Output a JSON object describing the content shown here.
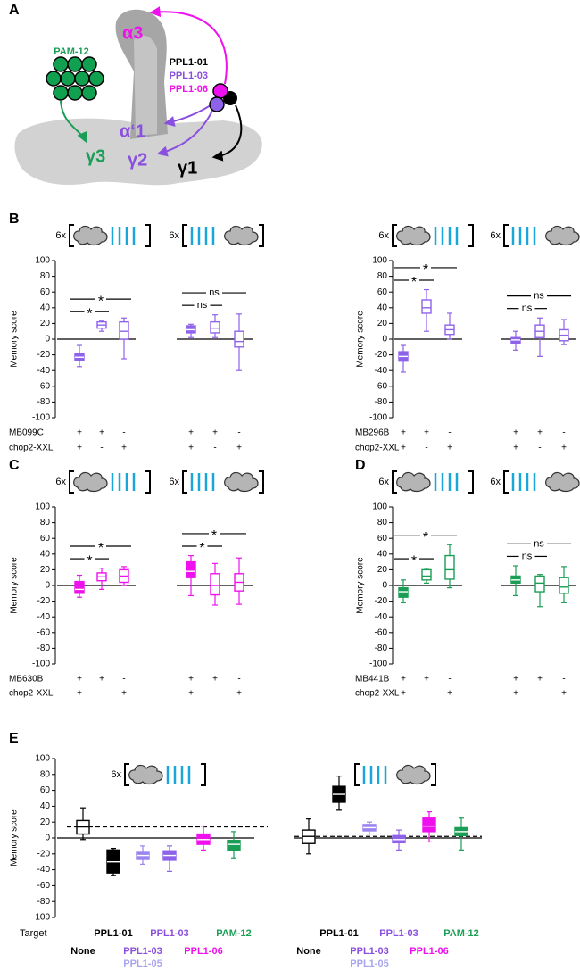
{
  "diagram": {
    "panel": "A",
    "labels": {
      "alpha3": "α3",
      "pam12": "PAM-12",
      "gamma3": "γ3",
      "alpha1": "α‘1",
      "gamma2": "γ2",
      "gamma1": "γ1",
      "ppl101": "PPL1-01",
      "ppl103": "PPL1-03",
      "ppl106": "PPL1-06"
    }
  },
  "chart_data": [
    {
      "type": "box",
      "panel": "B",
      "y_label": "Memory score",
      "ylim": [
        -100,
        100
      ],
      "yticks": [
        -100,
        -80,
        -60,
        -40,
        -20,
        0,
        20,
        40,
        60,
        80,
        100
      ],
      "color": "#8f62ea",
      "row_labels": [
        "MB099C",
        "chop2-XXL"
      ],
      "groups": [
        {
          "prefix": "6x",
          "significance": [
            "*",
            "*"
          ],
          "boxes": [
            {
              "values": [
                -35,
                -27,
                -23,
                -18,
                -8
              ],
              "filled": true,
              "rows": [
                "+",
                "+"
              ]
            },
            {
              "values": [
                10,
                14,
                18,
                22,
                23
              ],
              "filled": false,
              "rows": [
                "+",
                "-"
              ]
            },
            {
              "values": [
                -25,
                0,
                10,
                22,
                27
              ],
              "filled": false,
              "rows": [
                "-",
                "+"
              ]
            }
          ]
        },
        {
          "prefix": "6x",
          "significance": [
            "ns",
            "ns"
          ],
          "boxes": [
            {
              "values": [
                2,
                8,
                12,
                17,
                19
              ],
              "filled": true,
              "rows": [
                "+",
                "+"
              ]
            },
            {
              "values": [
                2,
                8,
                14,
                22,
                31
              ],
              "filled": false,
              "rows": [
                "+",
                "-"
              ]
            },
            {
              "values": [
                -40,
                -10,
                -3,
                10,
                32
              ],
              "filled": false,
              "rows": [
                "-",
                "+"
              ]
            }
          ]
        }
      ]
    },
    {
      "type": "box",
      "y_label": "Memory score",
      "ylim": [
        -100,
        100
      ],
      "yticks": [
        -100,
        -80,
        -60,
        -40,
        -20,
        0,
        20,
        40,
        60,
        80,
        100
      ],
      "color": "#8f62ea",
      "row_labels": [
        "MB296B",
        "chop2-XXL"
      ],
      "groups": [
        {
          "prefix": "6x",
          "significance": [
            "*",
            "*"
          ],
          "boxes": [
            {
              "values": [
                -42,
                -28,
                -22,
                -16,
                -8
              ],
              "filled": true,
              "rows": [
                "+",
                "+"
              ]
            },
            {
              "values": [
                10,
                33,
                40,
                50,
                63
              ],
              "filled": false,
              "rows": [
                "+",
                "-"
              ]
            },
            {
              "values": [
                0,
                6,
                12,
                18,
                33
              ],
              "filled": false,
              "rows": [
                "-",
                "+"
              ]
            }
          ]
        },
        {
          "prefix": "6x",
          "significance": [
            "ns",
            "ns"
          ],
          "boxes": [
            {
              "values": [
                -14,
                -6,
                -1,
                2,
                10
              ],
              "filled": true,
              "rows": [
                "+",
                "+"
              ]
            },
            {
              "values": [
                -22,
                2,
                10,
                18,
                27
              ],
              "filled": false,
              "rows": [
                "+",
                "-"
              ]
            },
            {
              "values": [
                -7,
                -2,
                5,
                12,
                25
              ],
              "filled": false,
              "rows": [
                "-",
                "+"
              ]
            }
          ]
        }
      ]
    },
    {
      "type": "box",
      "panel": "C",
      "y_label": "Memory score",
      "ylim": [
        -100,
        100
      ],
      "yticks": [
        -100,
        -80,
        -60,
        -40,
        -20,
        0,
        20,
        40,
        60,
        80,
        100
      ],
      "color": "#ee11ee",
      "row_labels": [
        "MB630B",
        "chop2-XXL"
      ],
      "groups": [
        {
          "prefix": "6x",
          "significance": [
            "*",
            "*"
          ],
          "boxes": [
            {
              "values": [
                -15,
                -10,
                -5,
                5,
                13
              ],
              "filled": true,
              "rows": [
                "+",
                "+"
              ]
            },
            {
              "values": [
                -5,
                6,
                11,
                16,
                22
              ],
              "filled": false,
              "rows": [
                "+",
                "-"
              ]
            },
            {
              "values": [
                0,
                4,
                12,
                20,
                24
              ],
              "filled": false,
              "rows": [
                "-",
                "+"
              ]
            }
          ]
        },
        {
          "prefix": "6x",
          "significance": [
            "*",
            "*"
          ],
          "boxes": [
            {
              "values": [
                -13,
                10,
                18,
                30,
                38
              ],
              "filled": true,
              "rows": [
                "+",
                "+"
              ]
            },
            {
              "values": [
                -25,
                -12,
                0,
                15,
                28
              ],
              "filled": false,
              "rows": [
                "+",
                "-"
              ]
            },
            {
              "values": [
                -24,
                -7,
                4,
                15,
                35
              ],
              "filled": false,
              "rows": [
                "-",
                "+"
              ]
            }
          ]
        }
      ]
    },
    {
      "type": "box",
      "panel": "D",
      "y_label": "Memory score",
      "ylim": [
        -100,
        100
      ],
      "yticks": [
        -100,
        -80,
        -60,
        -40,
        -20,
        0,
        20,
        40,
        60,
        80,
        100
      ],
      "color": "#1a9e55",
      "row_labels": [
        "MB441B",
        "chop2-XXL"
      ],
      "groups": [
        {
          "prefix": "6x",
          "significance": [
            "*",
            "*"
          ],
          "boxes": [
            {
              "values": [
                -22,
                -15,
                -8,
                -3,
                7
              ],
              "filled": true,
              "rows": [
                "+",
                "+"
              ]
            },
            {
              "values": [
                3,
                7,
                12,
                20,
                22
              ],
              "filled": false,
              "rows": [
                "+",
                "-"
              ]
            },
            {
              "values": [
                -3,
                8,
                20,
                38,
                52
              ],
              "filled": false,
              "rows": [
                "-",
                "+"
              ]
            }
          ]
        },
        {
          "prefix": "6x",
          "significance": [
            "ns",
            "ns"
          ],
          "boxes": [
            {
              "values": [
                -13,
                3,
                7,
                12,
                25
              ],
              "filled": true,
              "rows": [
                "+",
                "+"
              ]
            },
            {
              "values": [
                -27,
                -8,
                3,
                12,
                14
              ],
              "filled": false,
              "rows": [
                "+",
                "-"
              ]
            },
            {
              "values": [
                -22,
                -10,
                -2,
                10,
                24
              ],
              "filled": false,
              "rows": [
                "-",
                "+"
              ]
            }
          ]
        }
      ]
    },
    {
      "type": "box",
      "panel": "E",
      "y_label": "Memory score",
      "ylim": [
        -100,
        100
      ],
      "yticks": [
        -100,
        -80,
        -60,
        -40,
        -20,
        0,
        20,
        40,
        60,
        80,
        100
      ],
      "color": "#000000",
      "row_labels": [
        "Target"
      ],
      "groups": [
        {
          "prefix": "6x",
          "reference_line": 14,
          "boxes": [
            {
              "values": [
                -2,
                5,
                14,
                22,
                38
              ],
              "filled": false,
              "color": "#000000",
              "target": [
                {
                  "text": "None",
                  "color": "#000000"
                }
              ]
            },
            {
              "values": [
                -47,
                -44,
                -30,
                -15,
                -13
              ],
              "filled": true,
              "color": "#000000",
              "target": [
                {
                  "text": "PPL1-01",
                  "color": "#000000"
                }
              ]
            },
            {
              "values": [
                -33,
                -27,
                -22,
                -18,
                -10
              ],
              "filled": true,
              "color": "#9a84ef",
              "target": [
                {
                  "text": "PPL1-03",
                  "color": "#8a4fdf"
                },
                {
                  "text": "PPL1-05",
                  "color": "#a9a5ee"
                }
              ]
            },
            {
              "values": [
                -42,
                -28,
                -22,
                -16,
                -10
              ],
              "filled": true,
              "color": "#8f62ea",
              "target": [
                {
                  "text": "PPL1-03",
                  "color": "#8a4fdf"
                }
              ]
            },
            {
              "values": [
                -15,
                -8,
                -2,
                5,
                15
              ],
              "filled": true,
              "color": "#ee11ee",
              "target": [
                {
                  "text": "PPL1-06",
                  "color": "#ee11ee"
                }
              ]
            },
            {
              "values": [
                -25,
                -15,
                -8,
                -3,
                8
              ],
              "filled": true,
              "color": "#1a9e55",
              "target": [
                {
                  "text": "PAM-12",
                  "color": "#1a9e55"
                }
              ]
            }
          ]
        },
        {
          "reference_line": 2,
          "boxes": [
            {
              "values": [
                -20,
                -7,
                2,
                10,
                24
              ],
              "filled": false,
              "color": "#000000",
              "target": [
                {
                  "text": "None",
                  "color": "#000000"
                }
              ]
            },
            {
              "values": [
                35,
                45,
                55,
                65,
                78
              ],
              "filled": true,
              "color": "#000000",
              "target": [
                {
                  "text": "PPL1-01",
                  "color": "#000000"
                }
              ]
            },
            {
              "values": [
                5,
                9,
                13,
                17,
                20
              ],
              "filled": true,
              "color": "#9a84ef",
              "target": [
                {
                  "text": "PPL1-03",
                  "color": "#8a4fdf"
                },
                {
                  "text": "PPL1-05",
                  "color": "#a9a5ee"
                }
              ]
            },
            {
              "values": [
                -15,
                -6,
                -2,
                3,
                10
              ],
              "filled": true,
              "color": "#8f62ea",
              "target": [
                {
                  "text": "PPL1-03",
                  "color": "#8a4fdf"
                }
              ]
            },
            {
              "values": [
                -5,
                8,
                15,
                25,
                33
              ],
              "filled": true,
              "color": "#ee11ee",
              "target": [
                {
                  "text": "PPL1-06",
                  "color": "#ee11ee"
                }
              ]
            },
            {
              "values": [
                -15,
                3,
                8,
                13,
                25
              ],
              "filled": true,
              "color": "#1a9e55",
              "target": [
                {
                  "text": "PAM-12",
                  "color": "#1a9e55"
                }
              ]
            }
          ]
        }
      ]
    }
  ]
}
